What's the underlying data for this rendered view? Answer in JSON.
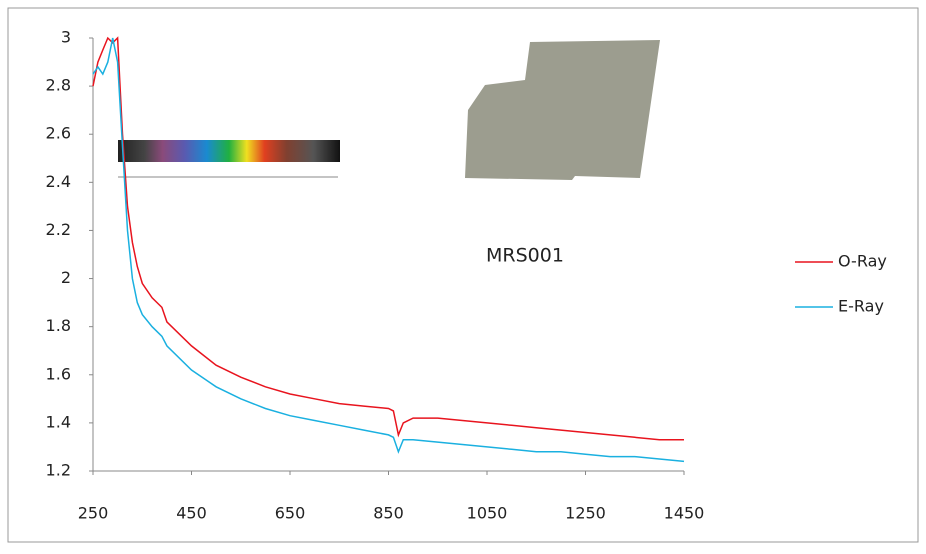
{
  "chart_data": {
    "type": "line",
    "x": [
      250,
      260,
      270,
      280,
      290,
      300,
      310,
      320,
      330,
      340,
      350,
      370,
      390,
      400,
      450,
      500,
      550,
      600,
      650,
      700,
      750,
      800,
      850,
      860,
      870,
      880,
      900,
      950,
      1000,
      1050,
      1100,
      1150,
      1200,
      1250,
      1300,
      1350,
      1400,
      1450
    ],
    "series": [
      {
        "name": "O-Ray",
        "color": "#e8141e",
        "values": [
          2.8,
          2.9,
          2.95,
          3.0,
          2.98,
          3.0,
          2.6,
          2.3,
          2.15,
          2.05,
          1.98,
          1.92,
          1.88,
          1.82,
          1.72,
          1.64,
          1.59,
          1.55,
          1.52,
          1.5,
          1.48,
          1.47,
          1.46,
          1.45,
          1.35,
          1.4,
          1.42,
          1.42,
          1.41,
          1.4,
          1.39,
          1.38,
          1.37,
          1.36,
          1.35,
          1.34,
          1.33,
          1.33
        ]
      },
      {
        "name": "E-Ray",
        "color": "#1ab0e0",
        "values": [
          2.85,
          2.88,
          2.85,
          2.9,
          3.0,
          2.9,
          2.55,
          2.2,
          2.0,
          1.9,
          1.85,
          1.8,
          1.76,
          1.72,
          1.62,
          1.55,
          1.5,
          1.46,
          1.43,
          1.41,
          1.39,
          1.37,
          1.35,
          1.34,
          1.28,
          1.33,
          1.33,
          1.32,
          1.31,
          1.3,
          1.29,
          1.28,
          1.28,
          1.27,
          1.26,
          1.26,
          1.25,
          1.24
        ]
      }
    ],
    "annotation": "MRS001",
    "xlim": [
      250,
      1450
    ],
    "xticks": [
      250,
      450,
      650,
      850,
      1050,
      1250,
      1450
    ],
    "ylim": [
      1.2,
      3
    ],
    "yticks": [
      1.2,
      1.4,
      1.6,
      1.8,
      2,
      2.2,
      2.4,
      2.6,
      2.8,
      3
    ],
    "grid": false,
    "legend": "right"
  }
}
